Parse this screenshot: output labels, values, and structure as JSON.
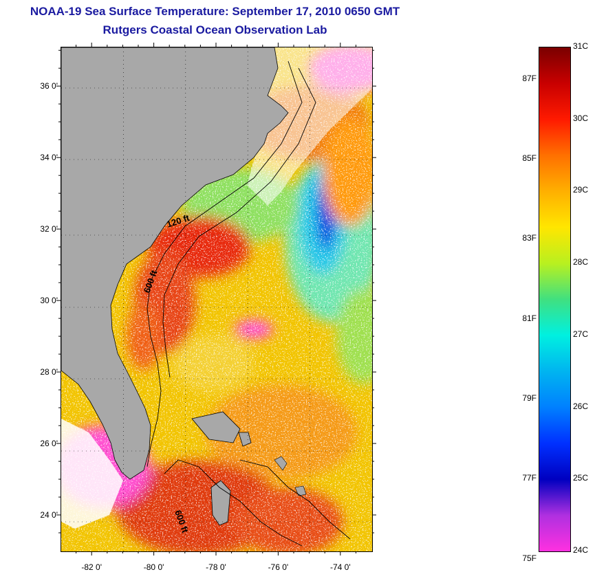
{
  "title": "NOAA-19 Sea Surface Temperature:  September 17, 2010 0650 GMT",
  "subtitle": "Rutgers Coastal Ocean Observation Lab",
  "map": {
    "lat_labels": [
      "36 0'",
      "34 0'",
      "32 0'",
      "30 0'",
      "28 0'",
      "26 0'",
      "24 0'"
    ],
    "lat_values": [
      36,
      34,
      32,
      30,
      28,
      26,
      24
    ],
    "lon_labels": [
      "-82 0'",
      "-80 0'",
      "-78 0'",
      "-76 0'",
      "-74 0'"
    ],
    "lon_values": [
      -82,
      -80,
      -78,
      -76,
      -74
    ],
    "lat_range": [
      23,
      37.1
    ],
    "lon_range": [
      -83,
      -73
    ],
    "depth_labels": [
      "120 ft",
      "600 ft",
      "600 ft"
    ],
    "colors": {
      "land": "#a8a8a8",
      "cloud": "#ffffff",
      "coast": "#000000"
    }
  },
  "colorbar": {
    "celsius_labels": [
      "31C",
      "30C",
      "29C",
      "28C",
      "27C",
      "26C",
      "25C",
      "24C"
    ],
    "celsius_values": [
      31,
      30,
      29,
      28,
      27,
      26,
      25,
      24
    ],
    "fahrenheit_labels": [
      "87F",
      "85F",
      "83F",
      "81F",
      "79F",
      "77F",
      "75F"
    ],
    "fahrenheit_values": [
      87,
      85,
      83,
      81,
      79,
      77,
      75
    ],
    "range_c": [
      24,
      31
    ]
  }
}
